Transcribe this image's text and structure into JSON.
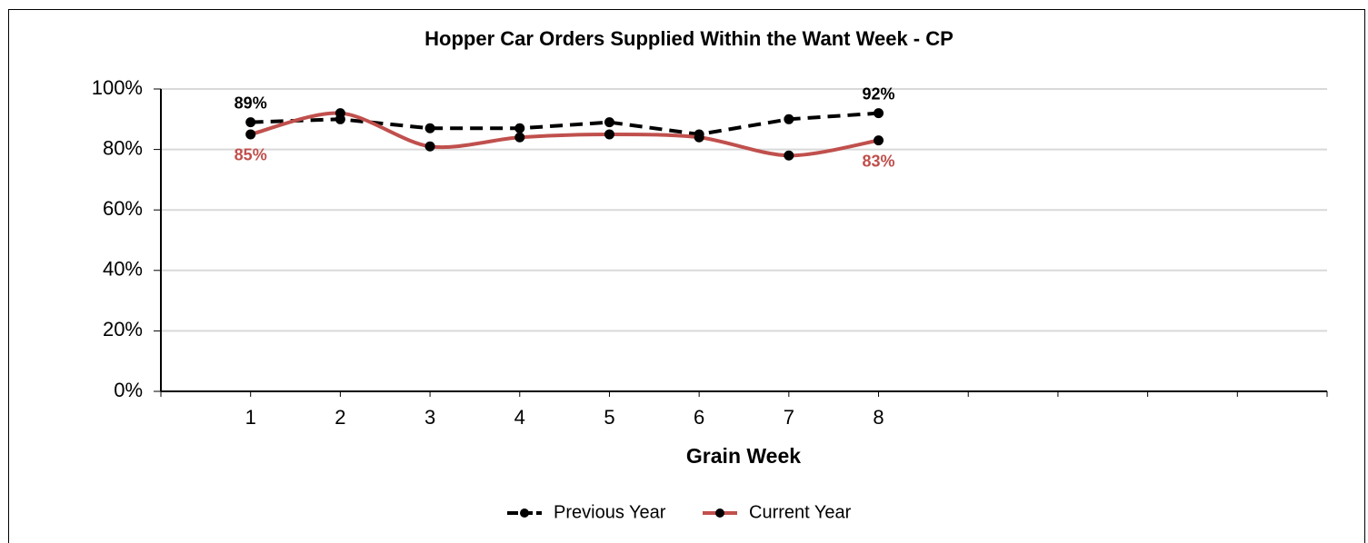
{
  "chart_data": {
    "type": "line",
    "title": "Hopper Car Orders Supplied Within the Want Week - CP",
    "x_label": "Grain Week",
    "categories": [
      "1",
      "2",
      "3",
      "4",
      "5",
      "6",
      "7",
      "8",
      null,
      null,
      null,
      null,
      null
    ],
    "ylim": [
      0,
      100
    ],
    "yticks": [
      {
        "value": 0,
        "label": "0%"
      },
      {
        "value": 20,
        "label": "20%"
      },
      {
        "value": 40,
        "label": "40%"
      },
      {
        "value": 60,
        "label": "60%"
      },
      {
        "value": 80,
        "label": "80%"
      },
      {
        "value": 100,
        "label": "100%"
      }
    ],
    "grid": true,
    "legend": "bottom",
    "series": [
      {
        "name": "Previous Year",
        "color": "#000000",
        "dashed": true,
        "smooth": false,
        "values": [
          89,
          90,
          87,
          87,
          89,
          85,
          90,
          92,
          null,
          null,
          null,
          null,
          null
        ],
        "value_labels": [
          "89%",
          null,
          null,
          null,
          null,
          null,
          null,
          "92%",
          null,
          null,
          null,
          null,
          null
        ]
      },
      {
        "name": "Current Year",
        "color": "#c0504d",
        "dashed": false,
        "smooth": true,
        "values": [
          85,
          92,
          81,
          84,
          85,
          84,
          78,
          83,
          null,
          null,
          null,
          null,
          null
        ],
        "value_labels": [
          "85%",
          null,
          null,
          null,
          null,
          null,
          null,
          "83%",
          null,
          null,
          null,
          null,
          null
        ]
      }
    ]
  }
}
